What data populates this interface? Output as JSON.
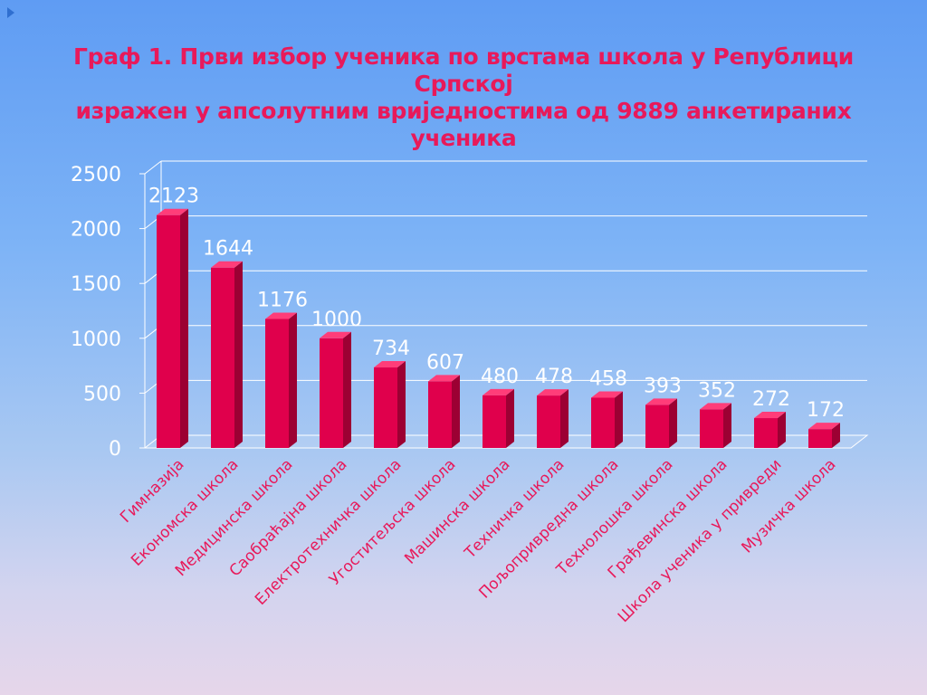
{
  "title": {
    "line1": "Граф 1. Први избор ученика по врстама школа у Републици Српској",
    "line2": "изражен у апсолутним вриједностима од 9889 анкетираних",
    "line3": "ученика"
  },
  "colors": {
    "bar": "#e0004c",
    "bar_side": "#9c0033",
    "bar_top": "#ff3d79",
    "category_label": "#e8195a",
    "axis_text": "#ffffff"
  },
  "chart_data": {
    "type": "bar",
    "title": "Граф 1. Први избор ученика по врстама школа у Републици Српској изражен у апсолутним вриједностима од 9889 анкетираних ученика",
    "categories": [
      "Гимназија",
      "Економска школа",
      "Медицинска школа",
      "Саобраћајна школа",
      "Електротехничка школа",
      "Угоститељска школа",
      "Машинска школа",
      "Техничка школа",
      "Пољопривредна школа",
      "Технолошка школа",
      "Грађевинска школа",
      "Школа ученика у привреди",
      "Музичка школа"
    ],
    "values": [
      2123,
      1644,
      1176,
      1000,
      734,
      607,
      480,
      478,
      458,
      393,
      352,
      272,
      172
    ],
    "yticks": [
      0,
      500,
      1000,
      1500,
      2000,
      2500
    ],
    "ylim": [
      0,
      2500
    ],
    "grid": true,
    "legend": "none"
  }
}
